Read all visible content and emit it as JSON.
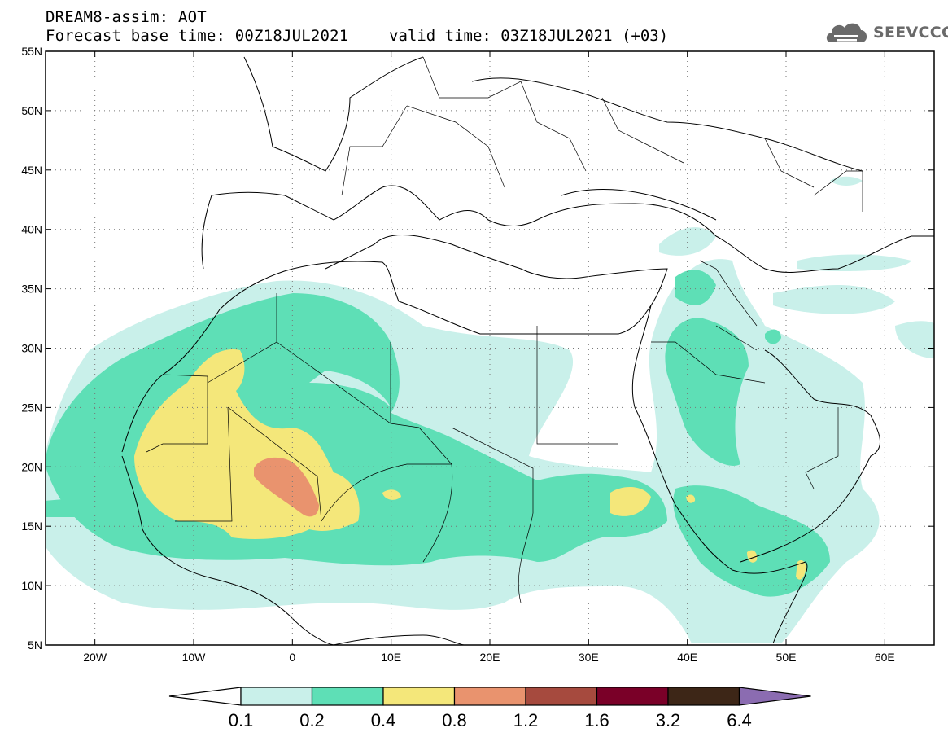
{
  "header": {
    "title": "DREAM8-assim: AOT",
    "base_time": "Forecast base time: 00Z18JUL2021",
    "valid_time": "valid time: 03Z18JUL2021 (+03)"
  },
  "logo": {
    "text": "SEEVCCC",
    "icon": "cloud-icon"
  },
  "map": {
    "lat_labels": [
      "55N",
      "50N",
      "45N",
      "40N",
      "35N",
      "30N",
      "25N",
      "20N",
      "15N",
      "10N",
      "5N"
    ],
    "lon_labels": [
      "20W",
      "10W",
      "0",
      "10E",
      "20E",
      "30E",
      "40E",
      "50E",
      "60E"
    ],
    "lat_range": [
      5,
      55
    ],
    "lon_range": [
      -25,
      65
    ],
    "grid": "dotted"
  },
  "colorbar": {
    "levels": [
      "0.1",
      "0.2",
      "0.4",
      "0.8",
      "1.2",
      "1.6",
      "3.2",
      "6.4"
    ],
    "colors": [
      "#c9f0ea",
      "#5edfb6",
      "#f4e77a",
      "#e9936e",
      "#a64a3e",
      "#7a0028",
      "#3d2617",
      "#8b6cb1"
    ],
    "below_color": "#ffffff",
    "above_color": "#8b6cb1"
  }
}
